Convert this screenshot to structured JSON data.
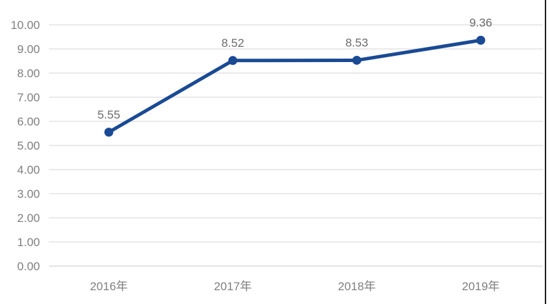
{
  "chart_data": {
    "type": "line",
    "title": "",
    "xlabel": "",
    "ylabel": "",
    "categories": [
      "2016年",
      "2017年",
      "2018年",
      "2019年"
    ],
    "series": [
      {
        "name": "series-1",
        "values": [
          5.55,
          8.52,
          8.53,
          9.36
        ],
        "point_labels": [
          "5.55",
          "8.52",
          "8.53",
          "9.36"
        ]
      }
    ],
    "y_ticks": [
      "0.00",
      "1.00",
      "2.00",
      "3.00",
      "4.00",
      "5.00",
      "6.00",
      "7.00",
      "8.00",
      "9.00",
      "10.00"
    ],
    "ylim": [
      0,
      10
    ],
    "y_step": 1,
    "grid": "horizontal-only",
    "legend": "none",
    "marker": "filled-circle"
  },
  "colors": {
    "series_line": "#1a4a94",
    "marker_fill": "#1a4a94",
    "grid_line": "#e4e4e4",
    "zero_line": "#dcdcdc",
    "axis_text": "#7f7f7f",
    "point_label_text": "#6b6b6b",
    "background": "#ffffff",
    "edge_line": "#1f1f1f"
  }
}
